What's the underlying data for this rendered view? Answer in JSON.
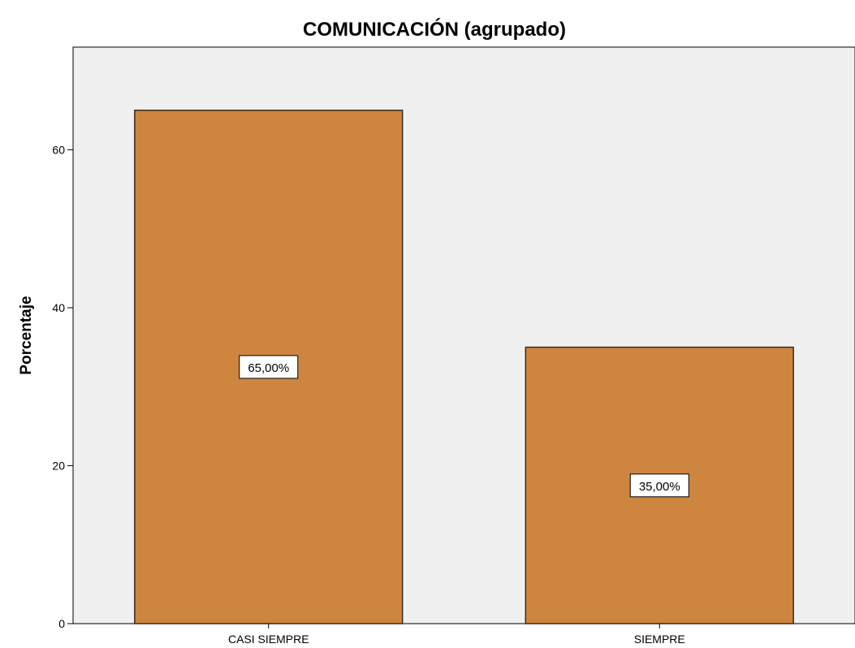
{
  "chart_data": {
    "type": "bar",
    "title": "COMUNICACIÓN (agrupado)",
    "xlabel": "",
    "ylabel": "Porcentaje",
    "categories": [
      "CASI SIEMPRE",
      "SIEMPRE"
    ],
    "values": [
      65,
      35
    ],
    "data_labels": [
      "65,00%",
      "35,00%"
    ],
    "yticks": [
      0,
      20,
      40,
      60
    ],
    "ylim": [
      0,
      73
    ],
    "grid": false,
    "legend": "none",
    "colors": {
      "bar_fill": "#cd853f",
      "bar_stroke": "#3a2a1a",
      "plot_background": "#f0f0f0",
      "page_background": "#ffffff"
    }
  }
}
